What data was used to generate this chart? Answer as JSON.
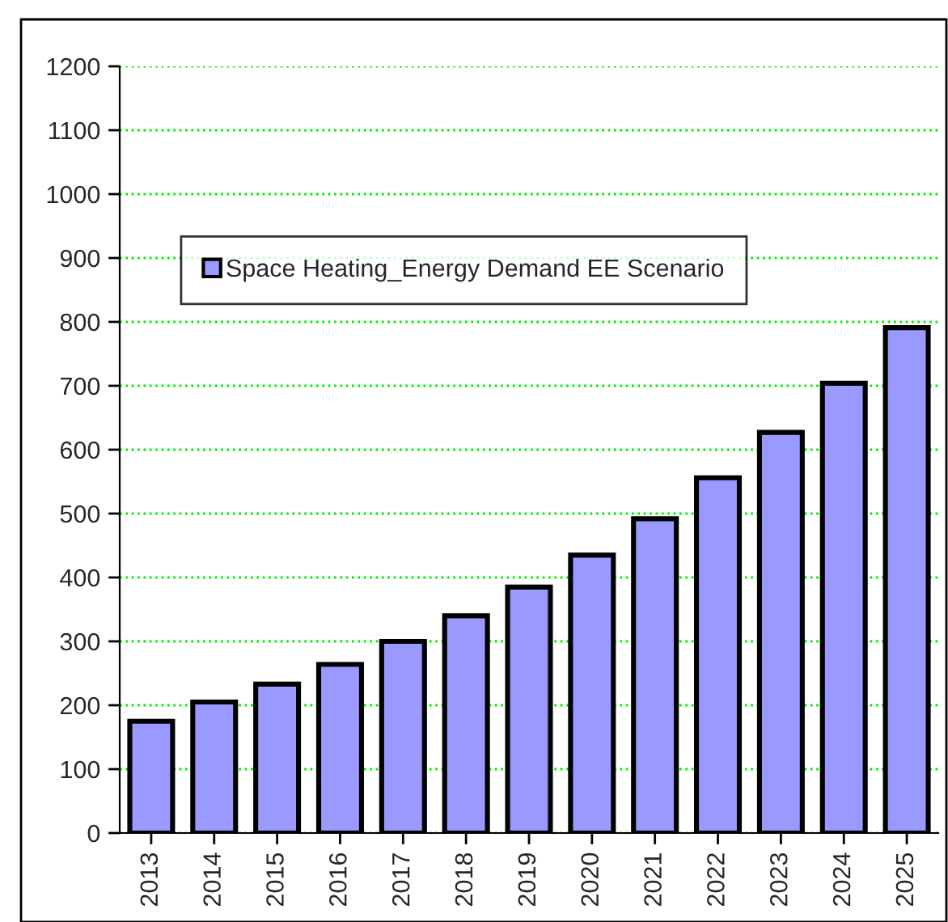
{
  "chart_data": {
    "type": "bar",
    "categories": [
      "2013",
      "2014",
      "2015",
      "2016",
      "2017",
      "2018",
      "2019",
      "2020",
      "2021",
      "2022",
      "2023",
      "2024",
      "2025"
    ],
    "series": [
      {
        "name": "Space Heating_Energy Demand EE Scenario",
        "color": "#9999ff",
        "values": [
          175,
          205,
          233,
          264,
          300,
          340,
          385,
          435,
          492,
          556,
          627,
          704,
          791
        ]
      }
    ],
    "ylim": [
      0,
      1200
    ],
    "yticks": [
      0,
      100,
      200,
      300,
      400,
      500,
      600,
      700,
      800,
      900,
      1000,
      1100,
      1200
    ],
    "grid": "y",
    "legend": "top left"
  }
}
